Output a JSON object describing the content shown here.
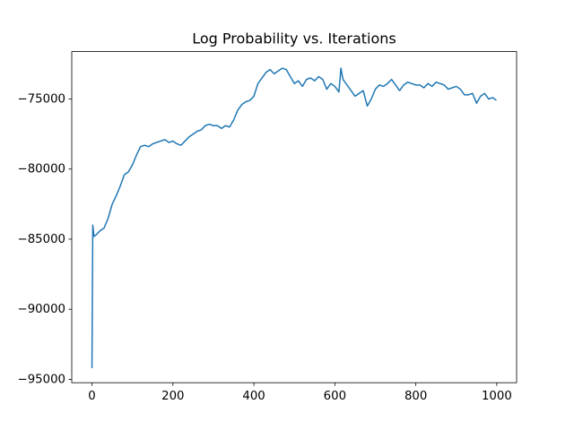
{
  "chart_data": {
    "type": "line",
    "title": "Log Probability vs. Iterations",
    "x": [
      0,
      2,
      5,
      10,
      20,
      30,
      40,
      50,
      60,
      70,
      80,
      90,
      100,
      110,
      120,
      130,
      140,
      150,
      160,
      170,
      180,
      190,
      200,
      210,
      220,
      230,
      240,
      250,
      260,
      270,
      280,
      290,
      300,
      310,
      320,
      330,
      340,
      350,
      360,
      370,
      380,
      390,
      400,
      410,
      420,
      430,
      440,
      450,
      460,
      470,
      480,
      490,
      500,
      510,
      520,
      530,
      540,
      550,
      560,
      570,
      580,
      590,
      600,
      610,
      615,
      620,
      630,
      640,
      650,
      660,
      670,
      680,
      690,
      700,
      710,
      720,
      730,
      740,
      750,
      760,
      770,
      780,
      790,
      800,
      810,
      820,
      830,
      840,
      850,
      860,
      870,
      880,
      890,
      900,
      910,
      920,
      930,
      940,
      950,
      960,
      970,
      980,
      990,
      999
    ],
    "series": [
      {
        "name": "Log Probability",
        "color": "#1f77b4",
        "values": [
          -94200,
          -84000,
          -84800,
          -84700,
          -84400,
          -84200,
          -83500,
          -82500,
          -81900,
          -81200,
          -80400,
          -80200,
          -79700,
          -79000,
          -78400,
          -78300,
          -78400,
          -78200,
          -78100,
          -78000,
          -77900,
          -78100,
          -78000,
          -78200,
          -78300,
          -78000,
          -77700,
          -77500,
          -77300,
          -77200,
          -76900,
          -76800,
          -76900,
          -76900,
          -77100,
          -76900,
          -77000,
          -76500,
          -75800,
          -75400,
          -75200,
          -75100,
          -74800,
          -73900,
          -73500,
          -73100,
          -72900,
          -73200,
          -73000,
          -72800,
          -72900,
          -73400,
          -73900,
          -73700,
          -74100,
          -73600,
          -73500,
          -73700,
          -73400,
          -73600,
          -74300,
          -73900,
          -74100,
          -74500,
          -72800,
          -73600,
          -74000,
          -74400,
          -74800,
          -74600,
          -74400,
          -75500,
          -75000,
          -74300,
          -74000,
          -74100,
          -73900,
          -73600,
          -74000,
          -74400,
          -74000,
          -73800,
          -73900,
          -74000,
          -74000,
          -74200,
          -73900,
          -74100,
          -73800,
          -73900,
          -74000,
          -74300,
          -74200,
          -74100,
          -74300,
          -74700,
          -74700,
          -74600,
          -75300,
          -74800,
          -74600,
          -75000,
          -74900,
          -75100
        ]
      }
    ],
    "xlim": [
      -49.95,
      1048.95
    ],
    "xticks": [
      0,
      200,
      400,
      600,
      800,
      1000
    ],
    "ylim": [
      -95241,
      -71618
    ],
    "yticks": [
      {
        "value": -95000,
        "label": "−95000"
      },
      {
        "value": -90000,
        "label": "−90000"
      },
      {
        "value": -85000,
        "label": "−85000"
      },
      {
        "value": -80000,
        "label": "−80000"
      },
      {
        "value": -75000,
        "label": "−75000"
      }
    ]
  }
}
